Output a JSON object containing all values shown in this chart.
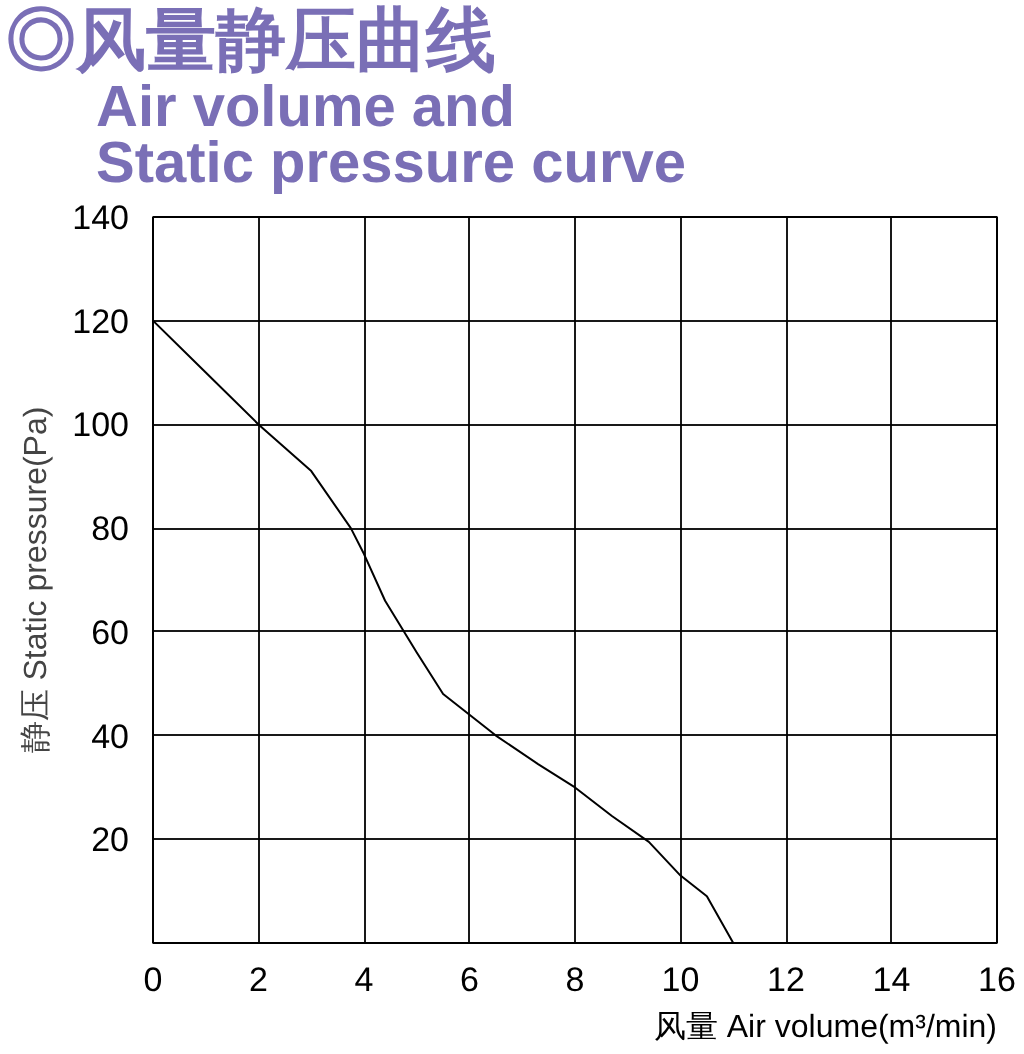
{
  "chart_data": {
    "type": "line",
    "title": "◎风量静压曲线",
    "subtitle": "Air volume and\nStatic pressure curve",
    "xlabel": "风量 Air volume(m³/min)",
    "ylabel": "静压 Static pressure(Pa)",
    "x": [
      0,
      1,
      2,
      2.5,
      3,
      3.75,
      4.0,
      4.4,
      5.0,
      5.5,
      6.5,
      7.3,
      8.0,
      8.7,
      9.4,
      10.0,
      10.5,
      11.0
    ],
    "series": [
      {
        "color": "#000000",
        "values": [
          120,
          110,
          100,
          95.5,
          91,
          80,
          75,
          66,
          56,
          48,
          40,
          34.5,
          30,
          24.5,
          19.5,
          13,
          9,
          0
        ]
      }
    ],
    "xlim": [
      0,
      16
    ],
    "ylim": [
      0,
      140
    ],
    "xticks": [
      0,
      2,
      4,
      6,
      8,
      10,
      12,
      14,
      16
    ],
    "yticks": [
      {
        "value": 0,
        "label": null
      },
      20,
      40,
      60,
      80,
      100,
      120,
      140
    ],
    "grid": true,
    "line_style": "solid"
  }
}
